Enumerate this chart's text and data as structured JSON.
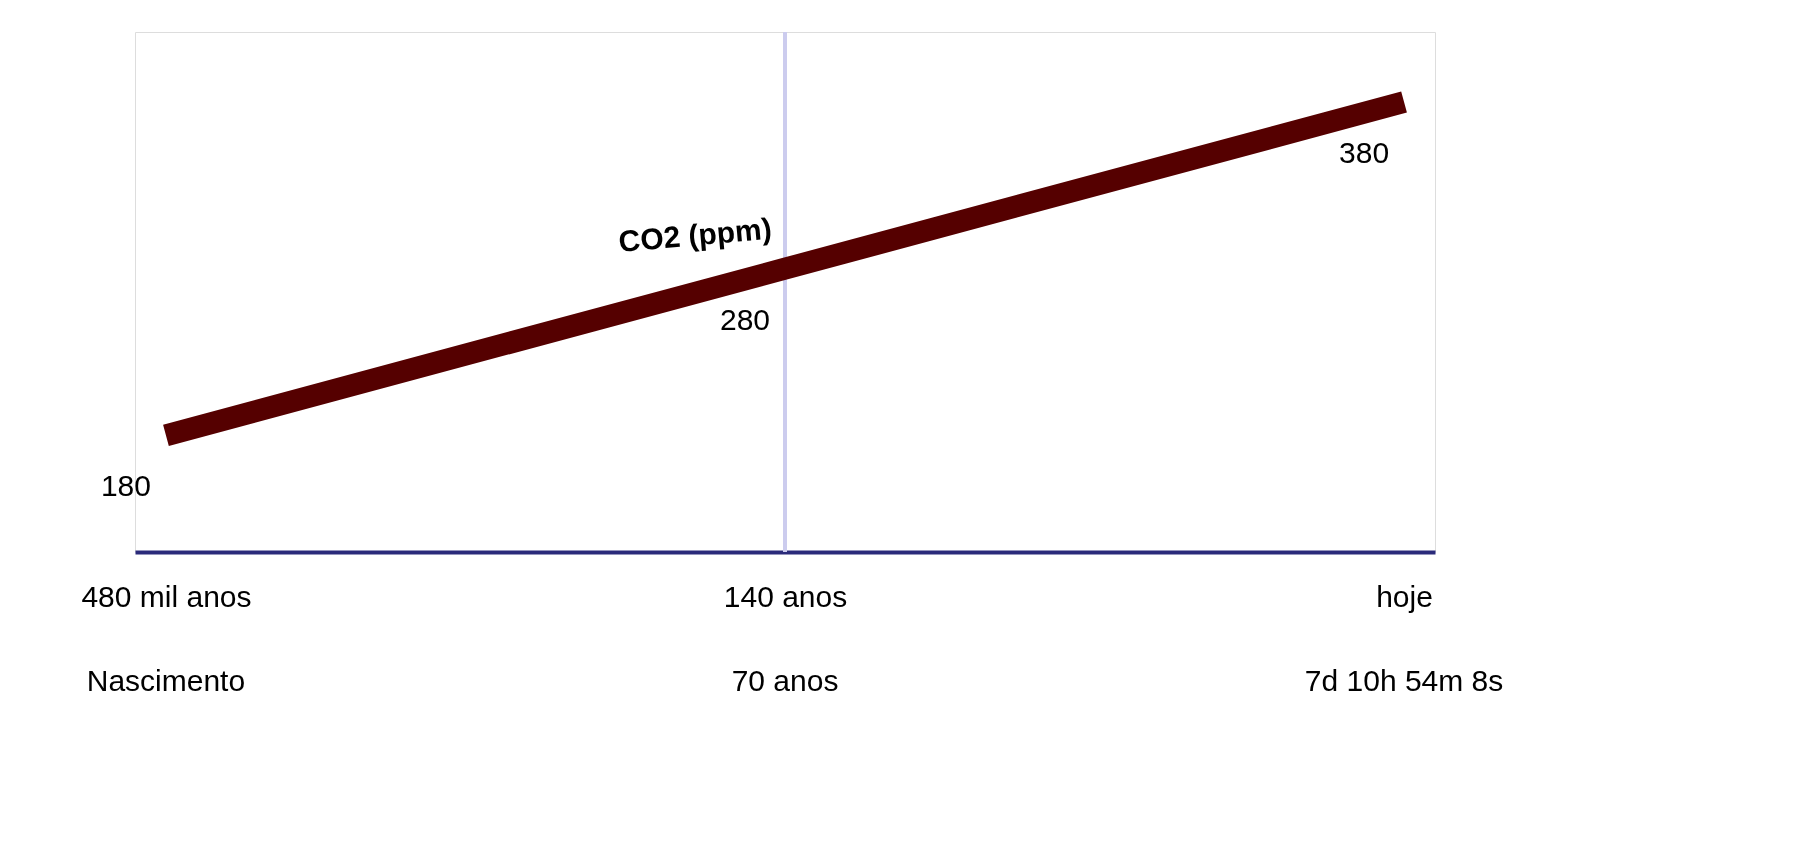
{
  "chart_data": {
    "type": "line",
    "categories": [
      "480 mil anos",
      "140 anos",
      "hoje"
    ],
    "series": [
      {
        "name": "CO2 (ppm)",
        "color": "#550000",
        "values": [
          180,
          280,
          380
        ]
      }
    ],
    "data_labels": true,
    "tick_labels": "x",
    "grid": false,
    "marker": "none",
    "line_style": "solid",
    "ref_lines": [
      {
        "axis": "x",
        "value": "140 anos",
        "color": "#ccccee"
      }
    ],
    "annotations": [
      "Nascimento",
      "70 anos",
      "7d  10h 54m 8s"
    ]
  }
}
